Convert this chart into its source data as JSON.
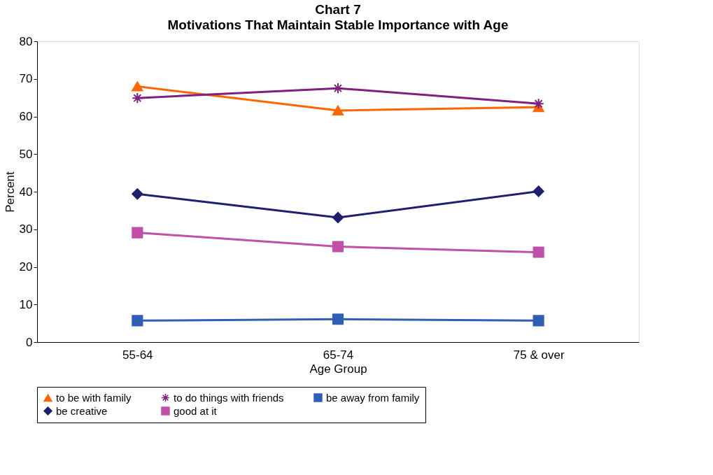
{
  "chart_data": {
    "type": "line",
    "title": "Chart 7",
    "subtitle": "Motivations That Maintain Stable Importance with Age",
    "xlabel": "Age Group",
    "ylabel": "Percent",
    "categories": [
      "55-64",
      "65-74",
      "75 & over"
    ],
    "series": [
      {
        "name": "to be with family",
        "color": "#ff6600",
        "marker": "triangle",
        "values": [
          68,
          61.6,
          62.5
        ]
      },
      {
        "name": "to do things with friends",
        "color": "#7f1f7f",
        "marker": "cross",
        "values": [
          64.9,
          67.5,
          63.4
        ]
      },
      {
        "name": "be away from family",
        "color": "#2e5fb5",
        "marker": "square",
        "values": [
          5.7,
          6.1,
          5.7
        ]
      },
      {
        "name": "be creative",
        "color": "#1f1f6f",
        "marker": "diamond",
        "values": [
          39.4,
          33.1,
          40.1
        ]
      },
      {
        "name": "good at it",
        "color": "#c050a8",
        "marker": "square",
        "values": [
          29.1,
          25.4,
          23.9
        ]
      }
    ],
    "ylim": [
      0,
      80
    ],
    "yticks": [
      0,
      10,
      20,
      30,
      40,
      50,
      60,
      70,
      80
    ],
    "grid": false,
    "legend": "bottom"
  }
}
